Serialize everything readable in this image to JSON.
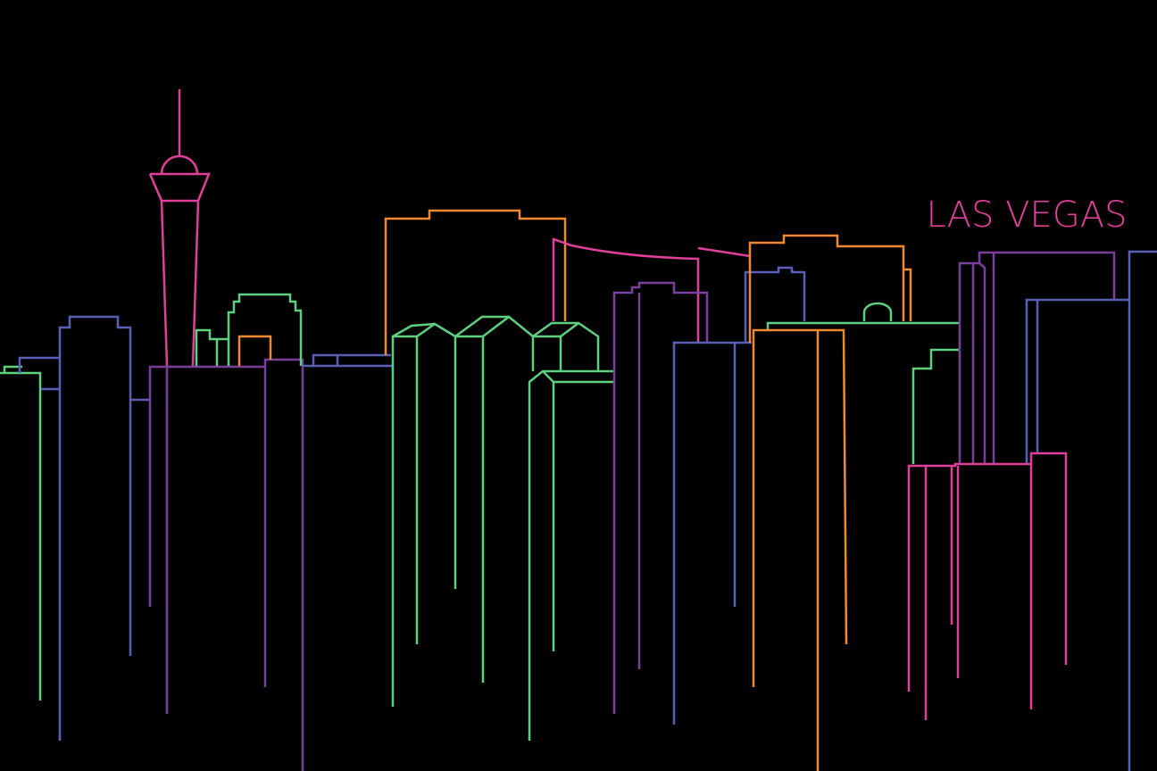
{
  "title": "LAS VEGAS"
}
